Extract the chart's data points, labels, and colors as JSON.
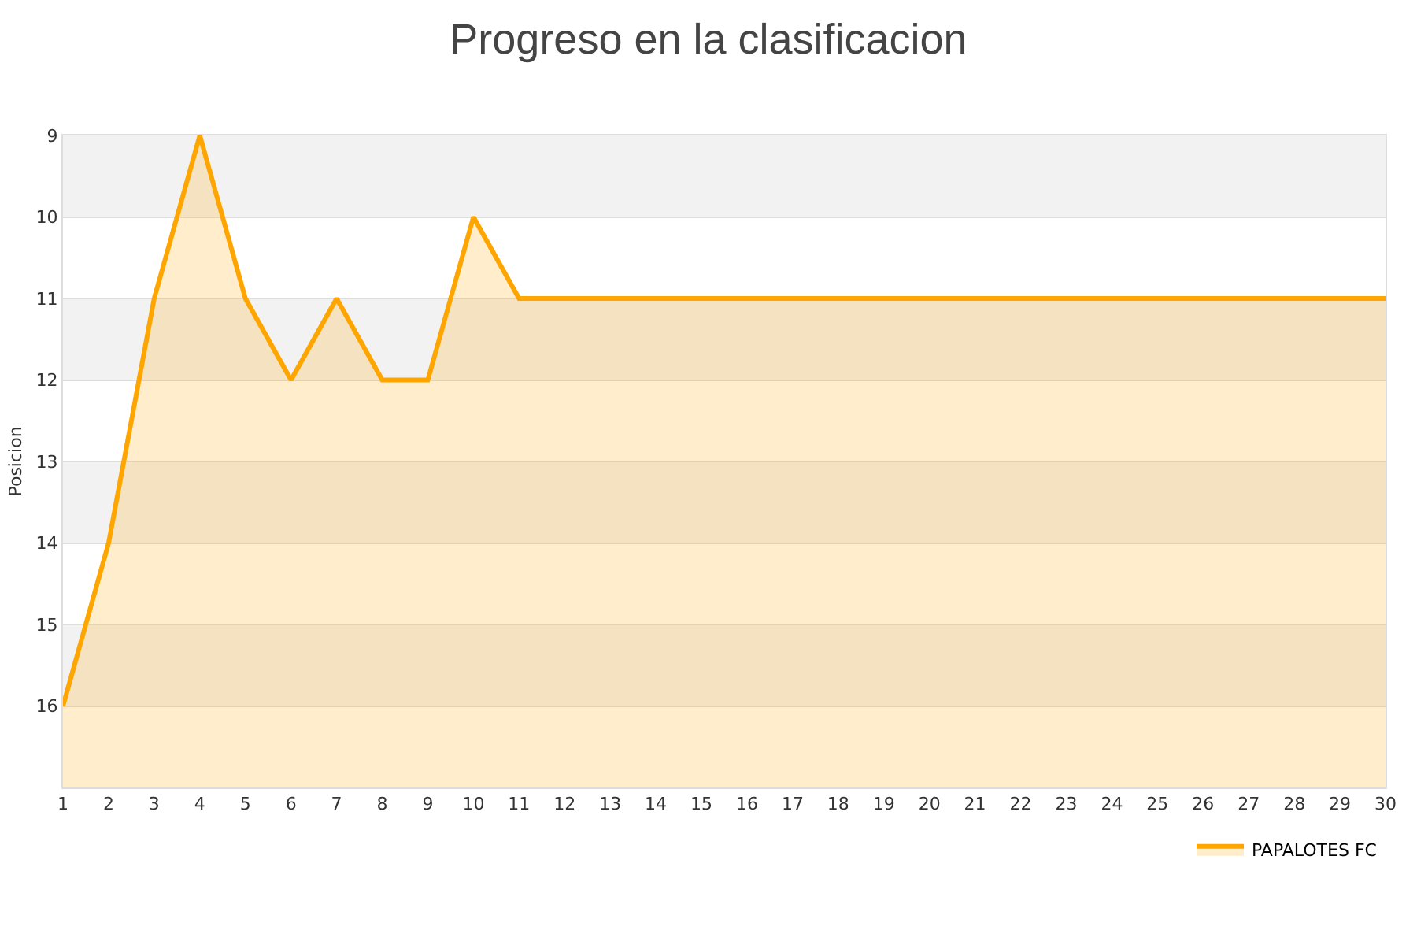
{
  "chart_data": {
    "type": "area",
    "title": "Progreso en la clasificacion",
    "ylabel": "Posicion",
    "x": [
      1,
      2,
      3,
      4,
      5,
      6,
      7,
      8,
      9,
      10,
      11,
      12,
      13,
      14,
      15,
      16,
      17,
      18,
      19,
      20,
      21,
      22,
      23,
      24,
      25,
      26,
      27,
      28,
      29,
      30
    ],
    "series": [
      {
        "name": "PAPALOTES FC",
        "color": "#ffa500",
        "values": [
          16,
          14,
          11,
          9,
          11,
          12,
          11,
          12,
          12,
          10,
          11,
          11,
          11,
          11,
          11,
          11,
          11,
          11,
          11,
          11,
          11,
          11,
          11,
          11,
          11,
          11,
          11,
          11,
          11,
          11
        ]
      }
    ],
    "xlim": [
      1,
      30
    ],
    "xticks": [
      1,
      2,
      3,
      4,
      5,
      6,
      7,
      8,
      9,
      10,
      11,
      12,
      13,
      14,
      15,
      16,
      17,
      18,
      19,
      20,
      21,
      22,
      23,
      24,
      25,
      26,
      27,
      28,
      29,
      30
    ],
    "ylim": [
      17,
      9
    ],
    "yticks": [
      9,
      10,
      11,
      12,
      13,
      14,
      15,
      16
    ],
    "bands": [
      {
        "axis": "y",
        "from": 9,
        "to": 10,
        "color": "#f2f2f2"
      },
      {
        "axis": "y",
        "from": 11,
        "to": 12,
        "color": "#f2f2f2"
      },
      {
        "axis": "y",
        "from": 13,
        "to": 14,
        "color": "#f2f2f2"
      },
      {
        "axis": "y",
        "from": 15,
        "to": 16,
        "color": "#f2f2f2"
      }
    ],
    "grid": "y",
    "legend": "bottom right",
    "marker": "none",
    "line_style": "solid"
  }
}
